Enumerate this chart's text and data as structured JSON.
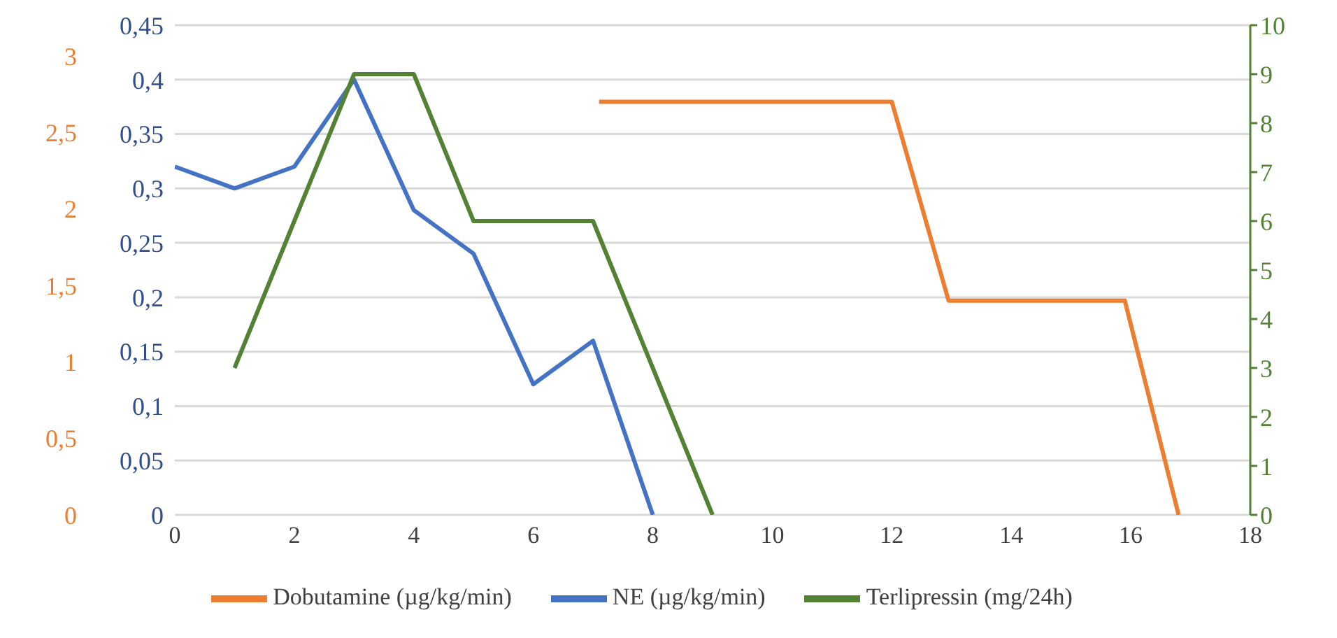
{
  "chart_data": {
    "type": "line",
    "xlim": [
      0,
      18
    ],
    "xticks": [
      0,
      2,
      4,
      6,
      8,
      10,
      12,
      14,
      16,
      18
    ],
    "ylim": [
      0,
      0.45
    ],
    "yticks": [
      0,
      {
        "value": 0.05,
        "label": "0,05"
      },
      {
        "value": 0.1,
        "label": "0,1"
      },
      {
        "value": 0.15,
        "label": "0,15"
      },
      {
        "value": 0.2,
        "label": "0,2"
      },
      {
        "value": 0.25,
        "label": "0,25"
      },
      {
        "value": 0.3,
        "label": "0,3"
      },
      {
        "value": 0.35,
        "label": "0,35"
      },
      {
        "value": 0.4,
        "label": "0,4"
      },
      {
        "value": 0.45,
        "label": "0,45"
      }
    ],
    "y2lim": [
      0,
      10
    ],
    "y2ticks": [
      0,
      1,
      2,
      3,
      4,
      5,
      6,
      7,
      8,
      9,
      10
    ],
    "y3lim": [
      0,
      3.2
    ],
    "y3ticks": [
      0,
      {
        "value": 0.5,
        "label": "0,5"
      },
      1,
      {
        "value": 1.5,
        "label": "1,5"
      },
      2,
      {
        "value": 2.5,
        "label": "2,5"
      },
      3
    ],
    "grid": "y",
    "legend": "bottom",
    "marker": "none",
    "line_style": "solid",
    "series": [
      {
        "name": "Dobutamine (µg/kg/min)",
        "color": "#ed7d31",
        "axis": "y3",
        "x": [
          7.1,
          12,
          12.95,
          15.9,
          16.8
        ],
        "values": [
          2.7,
          2.7,
          1.4,
          1.4,
          0
        ]
      },
      {
        "name": "NE (µg/kg/min)",
        "color": "#4472c4",
        "axis": "y",
        "x": [
          0,
          1,
          2,
          3,
          4,
          5,
          6,
          7,
          8
        ],
        "values": [
          0.32,
          0.3,
          0.32,
          0.4,
          0.28,
          0.24,
          0.12,
          0.16,
          0
        ]
      },
      {
        "name": "Terlipressin (mg/24h)",
        "color": "#548235",
        "axis": "y2",
        "x": [
          1,
          2,
          3,
          4,
          5,
          6,
          7,
          8,
          9
        ],
        "values": [
          3,
          6,
          9,
          9,
          6,
          6,
          6,
          3,
          0
        ]
      }
    ]
  }
}
